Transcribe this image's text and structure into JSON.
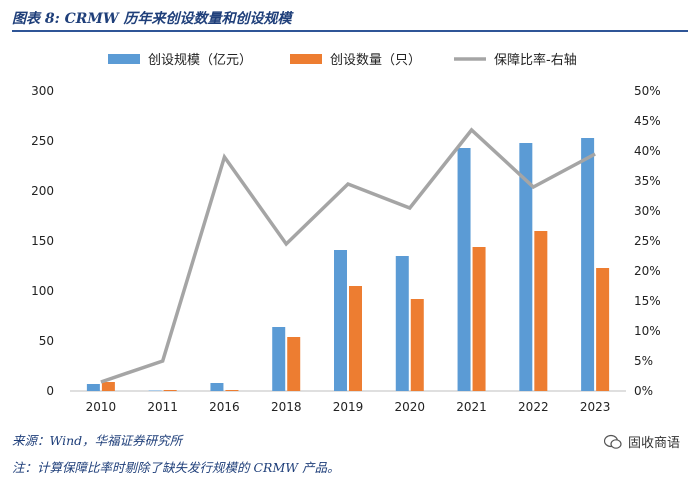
{
  "title": "图表 8:  CRMW 历年来创设数量和创设规模",
  "source": "来源：Wind，华福证券研究所",
  "note": "注：计算保障比率时剔除了缺失发行规模的 CRMW 产品。",
  "watermark": "固收商语",
  "colors": {
    "blue": "#5b9bd5",
    "orange": "#ed7d31",
    "gray": "#a5a5a5"
  },
  "chart_data": {
    "type": "bar",
    "categories": [
      "2010",
      "2011",
      "2016",
      "2018",
      "2019",
      "2020",
      "2021",
      "2022",
      "2023"
    ],
    "series": [
      {
        "name": "创设规模（亿元）",
        "type": "bar",
        "axis": "left",
        "values": [
          7,
          0.5,
          8,
          64,
          141,
          135,
          243,
          248,
          253
        ]
      },
      {
        "name": "创设数量（只）",
        "type": "bar",
        "axis": "left",
        "values": [
          9,
          1,
          1,
          54,
          105,
          92,
          144,
          160,
          123
        ]
      },
      {
        "name": "保障比率-右轴",
        "type": "line",
        "axis": "right",
        "values": [
          1.5,
          5,
          39,
          24.5,
          34.5,
          30.5,
          43.5,
          34,
          39.5
        ]
      }
    ],
    "left_axis": {
      "ylim": [
        0,
        300
      ],
      "ticks": [
        "0",
        "50",
        "100",
        "150",
        "200",
        "250",
        "300"
      ]
    },
    "right_axis": {
      "ylim": [
        0,
        50
      ],
      "ticks": [
        "0%",
        "5%",
        "10%",
        "15%",
        "20%",
        "25%",
        "30%",
        "35%",
        "40%",
        "45%",
        "50%"
      ]
    },
    "legend_position": "top"
  }
}
